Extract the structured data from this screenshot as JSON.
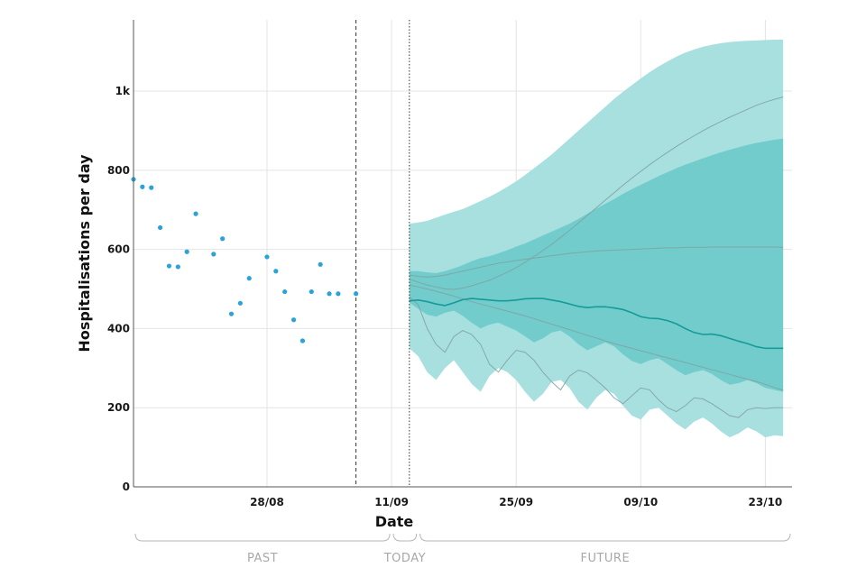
{
  "chart_data": {
    "type": "line",
    "xlabel": "Date",
    "ylabel": "Hospitalisations per day",
    "ylim": [
      0,
      1180
    ],
    "xlim": [
      "2021-08-13",
      "2021-10-26"
    ],
    "y_ticks": [
      {
        "value": 0,
        "label": "0"
      },
      {
        "value": 200,
        "label": "200"
      },
      {
        "value": 400,
        "label": "400"
      },
      {
        "value": 600,
        "label": "600"
      },
      {
        "value": 800,
        "label": "800"
      },
      {
        "value": 1000,
        "label": "1k"
      }
    ],
    "x_ticks": [
      {
        "date": "2021-08-28",
        "label": "28/08"
      },
      {
        "date": "2021-09-11",
        "label": "11/09"
      },
      {
        "date": "2021-09-25",
        "label": "25/09"
      },
      {
        "date": "2021-10-09",
        "label": "09/10"
      },
      {
        "date": "2021-10-23",
        "label": "23/10"
      }
    ],
    "grid": true,
    "colors": {
      "observed": "#2aa3d9",
      "outer_band": "#a8e0e0",
      "inner_band": "#72cccc",
      "median": "#169a9a",
      "scenario": "#7fa3a3",
      "gridline": "#e4e4e4",
      "axis": "#555555"
    },
    "reference_lines": [
      {
        "date": "2021-09-07",
        "style": "dashed"
      },
      {
        "date": "2021-09-13",
        "style": "dotted"
      }
    ],
    "periods": [
      {
        "label": "PAST",
        "start": "2021-08-13",
        "end": "2021-09-11"
      },
      {
        "label": "TODAY",
        "start": "2021-09-11",
        "end": "2021-09-14"
      },
      {
        "label": "FUTURE",
        "start": "2021-09-14",
        "end": "2021-10-26"
      }
    ],
    "observed": {
      "x": [
        "2021-08-13",
        "2021-08-14",
        "2021-08-15",
        "2021-08-16",
        "2021-08-17",
        "2021-08-18",
        "2021-08-19",
        "2021-08-20",
        "2021-08-22",
        "2021-08-23",
        "2021-08-24",
        "2021-08-25",
        "2021-08-26",
        "2021-08-28",
        "2021-08-29",
        "2021-08-30",
        "2021-08-31",
        "2021-09-01",
        "2021-09-02",
        "2021-09-03",
        "2021-09-04",
        "2021-09-05",
        "2021-09-07"
      ],
      "y": [
        777,
        758,
        756,
        655,
        558,
        556,
        594,
        690,
        588,
        627,
        437,
        464,
        527,
        581,
        545,
        493,
        422,
        369,
        493,
        562,
        488,
        488,
        488
      ]
    },
    "forecast": {
      "x": [
        "2021-09-13",
        "2021-09-14",
        "2021-09-15",
        "2021-09-16",
        "2021-09-17",
        "2021-09-18",
        "2021-09-19",
        "2021-09-20",
        "2021-09-21",
        "2021-09-22",
        "2021-09-23",
        "2021-09-24",
        "2021-09-25",
        "2021-09-26",
        "2021-09-27",
        "2021-09-28",
        "2021-09-29",
        "2021-09-30",
        "2021-10-01",
        "2021-10-02",
        "2021-10-03",
        "2021-10-04",
        "2021-10-05",
        "2021-10-06",
        "2021-10-07",
        "2021-10-08",
        "2021-10-09",
        "2021-10-10",
        "2021-10-11",
        "2021-10-12",
        "2021-10-13",
        "2021-10-14",
        "2021-10-15",
        "2021-10-16",
        "2021-10-17",
        "2021-10-18",
        "2021-10-19",
        "2021-10-20",
        "2021-10-21",
        "2021-10-22",
        "2021-10-23",
        "2021-10-24",
        "2021-10-25"
      ],
      "outer_upper": [
        665,
        668,
        672,
        680,
        688,
        695,
        702,
        712,
        722,
        733,
        745,
        758,
        772,
        788,
        805,
        822,
        840,
        860,
        880,
        900,
        920,
        940,
        960,
        980,
        998,
        1015,
        1032,
        1048,
        1062,
        1075,
        1087,
        1097,
        1105,
        1112,
        1117,
        1121,
        1124,
        1126,
        1127,
        1128,
        1129,
        1130,
        1130
      ],
      "outer_lower": [
        350,
        330,
        290,
        270,
        300,
        320,
        290,
        260,
        240,
        280,
        300,
        290,
        270,
        240,
        215,
        235,
        265,
        270,
        250,
        215,
        195,
        225,
        245,
        235,
        205,
        180,
        170,
        195,
        200,
        180,
        160,
        145,
        165,
        175,
        160,
        140,
        125,
        135,
        150,
        140,
        125,
        130,
        128
      ],
      "inner_upper": [
        545,
        545,
        542,
        540,
        545,
        552,
        560,
        570,
        578,
        583,
        590,
        598,
        607,
        615,
        625,
        635,
        645,
        655,
        665,
        677,
        690,
        703,
        715,
        727,
        740,
        752,
        763,
        774,
        785,
        795,
        805,
        814,
        822,
        830,
        838,
        845,
        852,
        858,
        864,
        869,
        873,
        877,
        880
      ],
      "inner_lower": [
        465,
        450,
        435,
        430,
        440,
        445,
        432,
        415,
        400,
        410,
        415,
        405,
        395,
        380,
        365,
        375,
        390,
        395,
        380,
        360,
        345,
        355,
        365,
        355,
        335,
        318,
        310,
        320,
        325,
        310,
        295,
        282,
        290,
        295,
        285,
        270,
        258,
        262,
        270,
        262,
        250,
        245,
        240
      ],
      "median": [
        470,
        472,
        468,
        462,
        458,
        465,
        473,
        476,
        474,
        472,
        470,
        470,
        472,
        475,
        476,
        476,
        472,
        468,
        462,
        456,
        453,
        455,
        455,
        452,
        448,
        440,
        430,
        426,
        425,
        420,
        412,
        400,
        390,
        385,
        386,
        382,
        375,
        368,
        362,
        354,
        350,
        350,
        350
      ],
      "scenario_high": [
        525,
        517,
        510,
        505,
        500,
        499,
        502,
        508,
        515,
        522,
        532,
        542,
        554,
        567,
        582,
        597,
        613,
        630,
        648,
        667,
        686,
        705,
        724,
        743,
        762,
        780,
        797,
        814,
        830,
        845,
        860,
        874,
        887,
        900,
        912,
        923,
        934,
        944,
        954,
        964,
        972,
        979,
        985
      ],
      "scenario_mid": [
        535,
        532,
        530,
        532,
        535,
        540,
        545,
        550,
        555,
        560,
        565,
        568,
        572,
        575,
        578,
        581,
        584,
        587,
        590,
        592,
        594,
        596,
        597,
        598,
        599,
        600,
        601,
        602,
        603,
        604,
        604,
        605,
        605,
        605,
        606,
        606,
        606,
        606,
        606,
        606,
        606,
        606,
        605
      ],
      "scenario_low": [
        510,
        505,
        500,
        494,
        488,
        482,
        475,
        468,
        462,
        456,
        450,
        444,
        438,
        432,
        425,
        418,
        411,
        404,
        397,
        390,
        383,
        376,
        369,
        362,
        356,
        350,
        344,
        338,
        332,
        326,
        320,
        314,
        308,
        302,
        296,
        290,
        284,
        278,
        272,
        266,
        259,
        251,
        244
      ],
      "scenario_lower": [
        480,
        460,
        400,
        360,
        340,
        380,
        395,
        385,
        360,
        310,
        290,
        320,
        345,
        340,
        320,
        290,
        265,
        245,
        280,
        295,
        288,
        270,
        250,
        225,
        210,
        230,
        250,
        245,
        220,
        200,
        190,
        205,
        225,
        222,
        210,
        195,
        180,
        175,
        195,
        200,
        198,
        200,
        200
      ]
    }
  }
}
